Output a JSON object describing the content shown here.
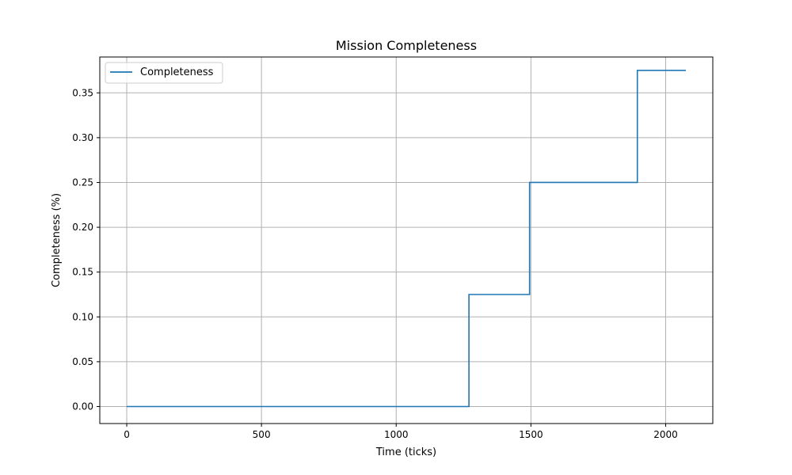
{
  "chart_data": {
    "type": "line",
    "title": "Mission Completeness",
    "xlabel": "Time (ticks)",
    "ylabel": "Completeness (%)",
    "xlim": [
      -100,
      2175
    ],
    "ylim": [
      -0.019,
      0.39
    ],
    "xticks": [
      0,
      500,
      1000,
      1500,
      2000
    ],
    "yticks": [
      0.0,
      0.05,
      0.1,
      0.15,
      0.2,
      0.25,
      0.3,
      0.35
    ],
    "xtick_labels": [
      "0",
      "500",
      "1000",
      "1500",
      "2000"
    ],
    "ytick_labels": [
      "0.00",
      "0.05",
      "0.10",
      "0.15",
      "0.20",
      "0.25",
      "0.30",
      "0.35"
    ],
    "grid": true,
    "legend_position": "top-left",
    "series": [
      {
        "name": "Completeness",
        "color": "#1f77b4",
        "step": "post",
        "x": [
          0,
          1270,
          1495,
          1895,
          2075
        ],
        "y": [
          0.0,
          0.125,
          0.25,
          0.375,
          0.375
        ]
      }
    ]
  }
}
